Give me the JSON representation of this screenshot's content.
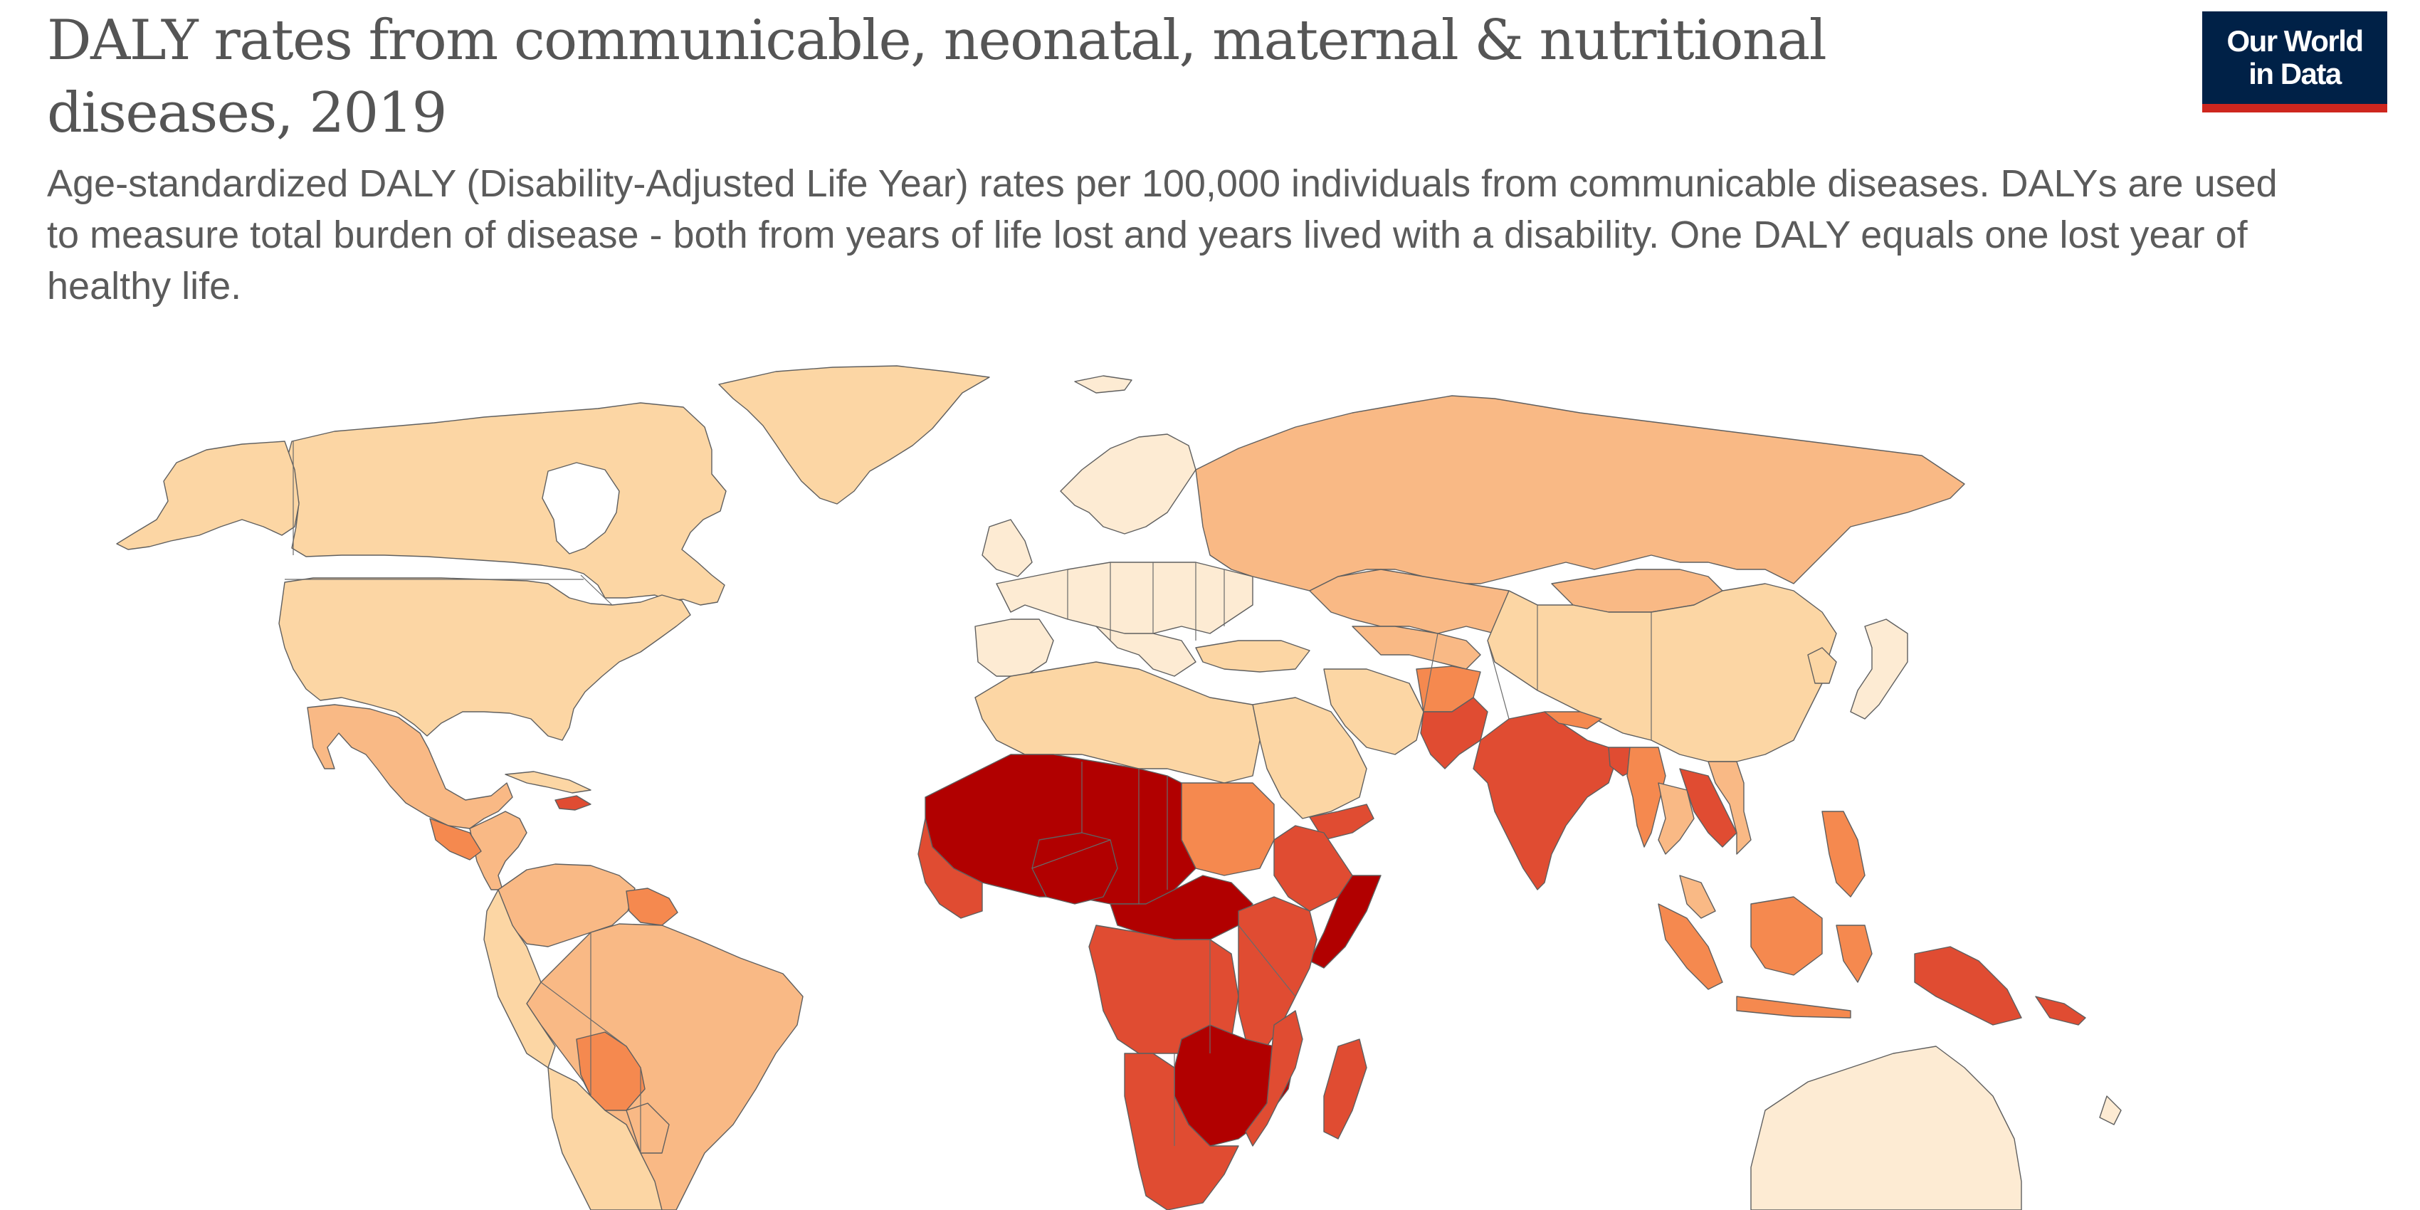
{
  "header": {
    "title": "DALY rates from communicable, neonatal, maternal & nutritional diseases, 2019",
    "subtitle": "Age-standardized DALY (Disability-Adjusted Life Year) rates per 100,000 individuals from communicable diseases. DALYs are used to measure total burden of disease - both from years of life lost and years lived with a disability. One DALY equals one lost year of healthy life.",
    "logo_line1": "Our World",
    "logo_line2": "in Data"
  },
  "map": {
    "year": 2019,
    "colors": {
      "level1": "#fdebd3",
      "level2": "#fcd6a4",
      "level3": "#f9b985",
      "level4": "#f5894f",
      "level5": "#e04c32",
      "level6": "#b10000",
      "ocean": "#ffffff",
      "border": "#5f5f5f"
    }
  }
}
